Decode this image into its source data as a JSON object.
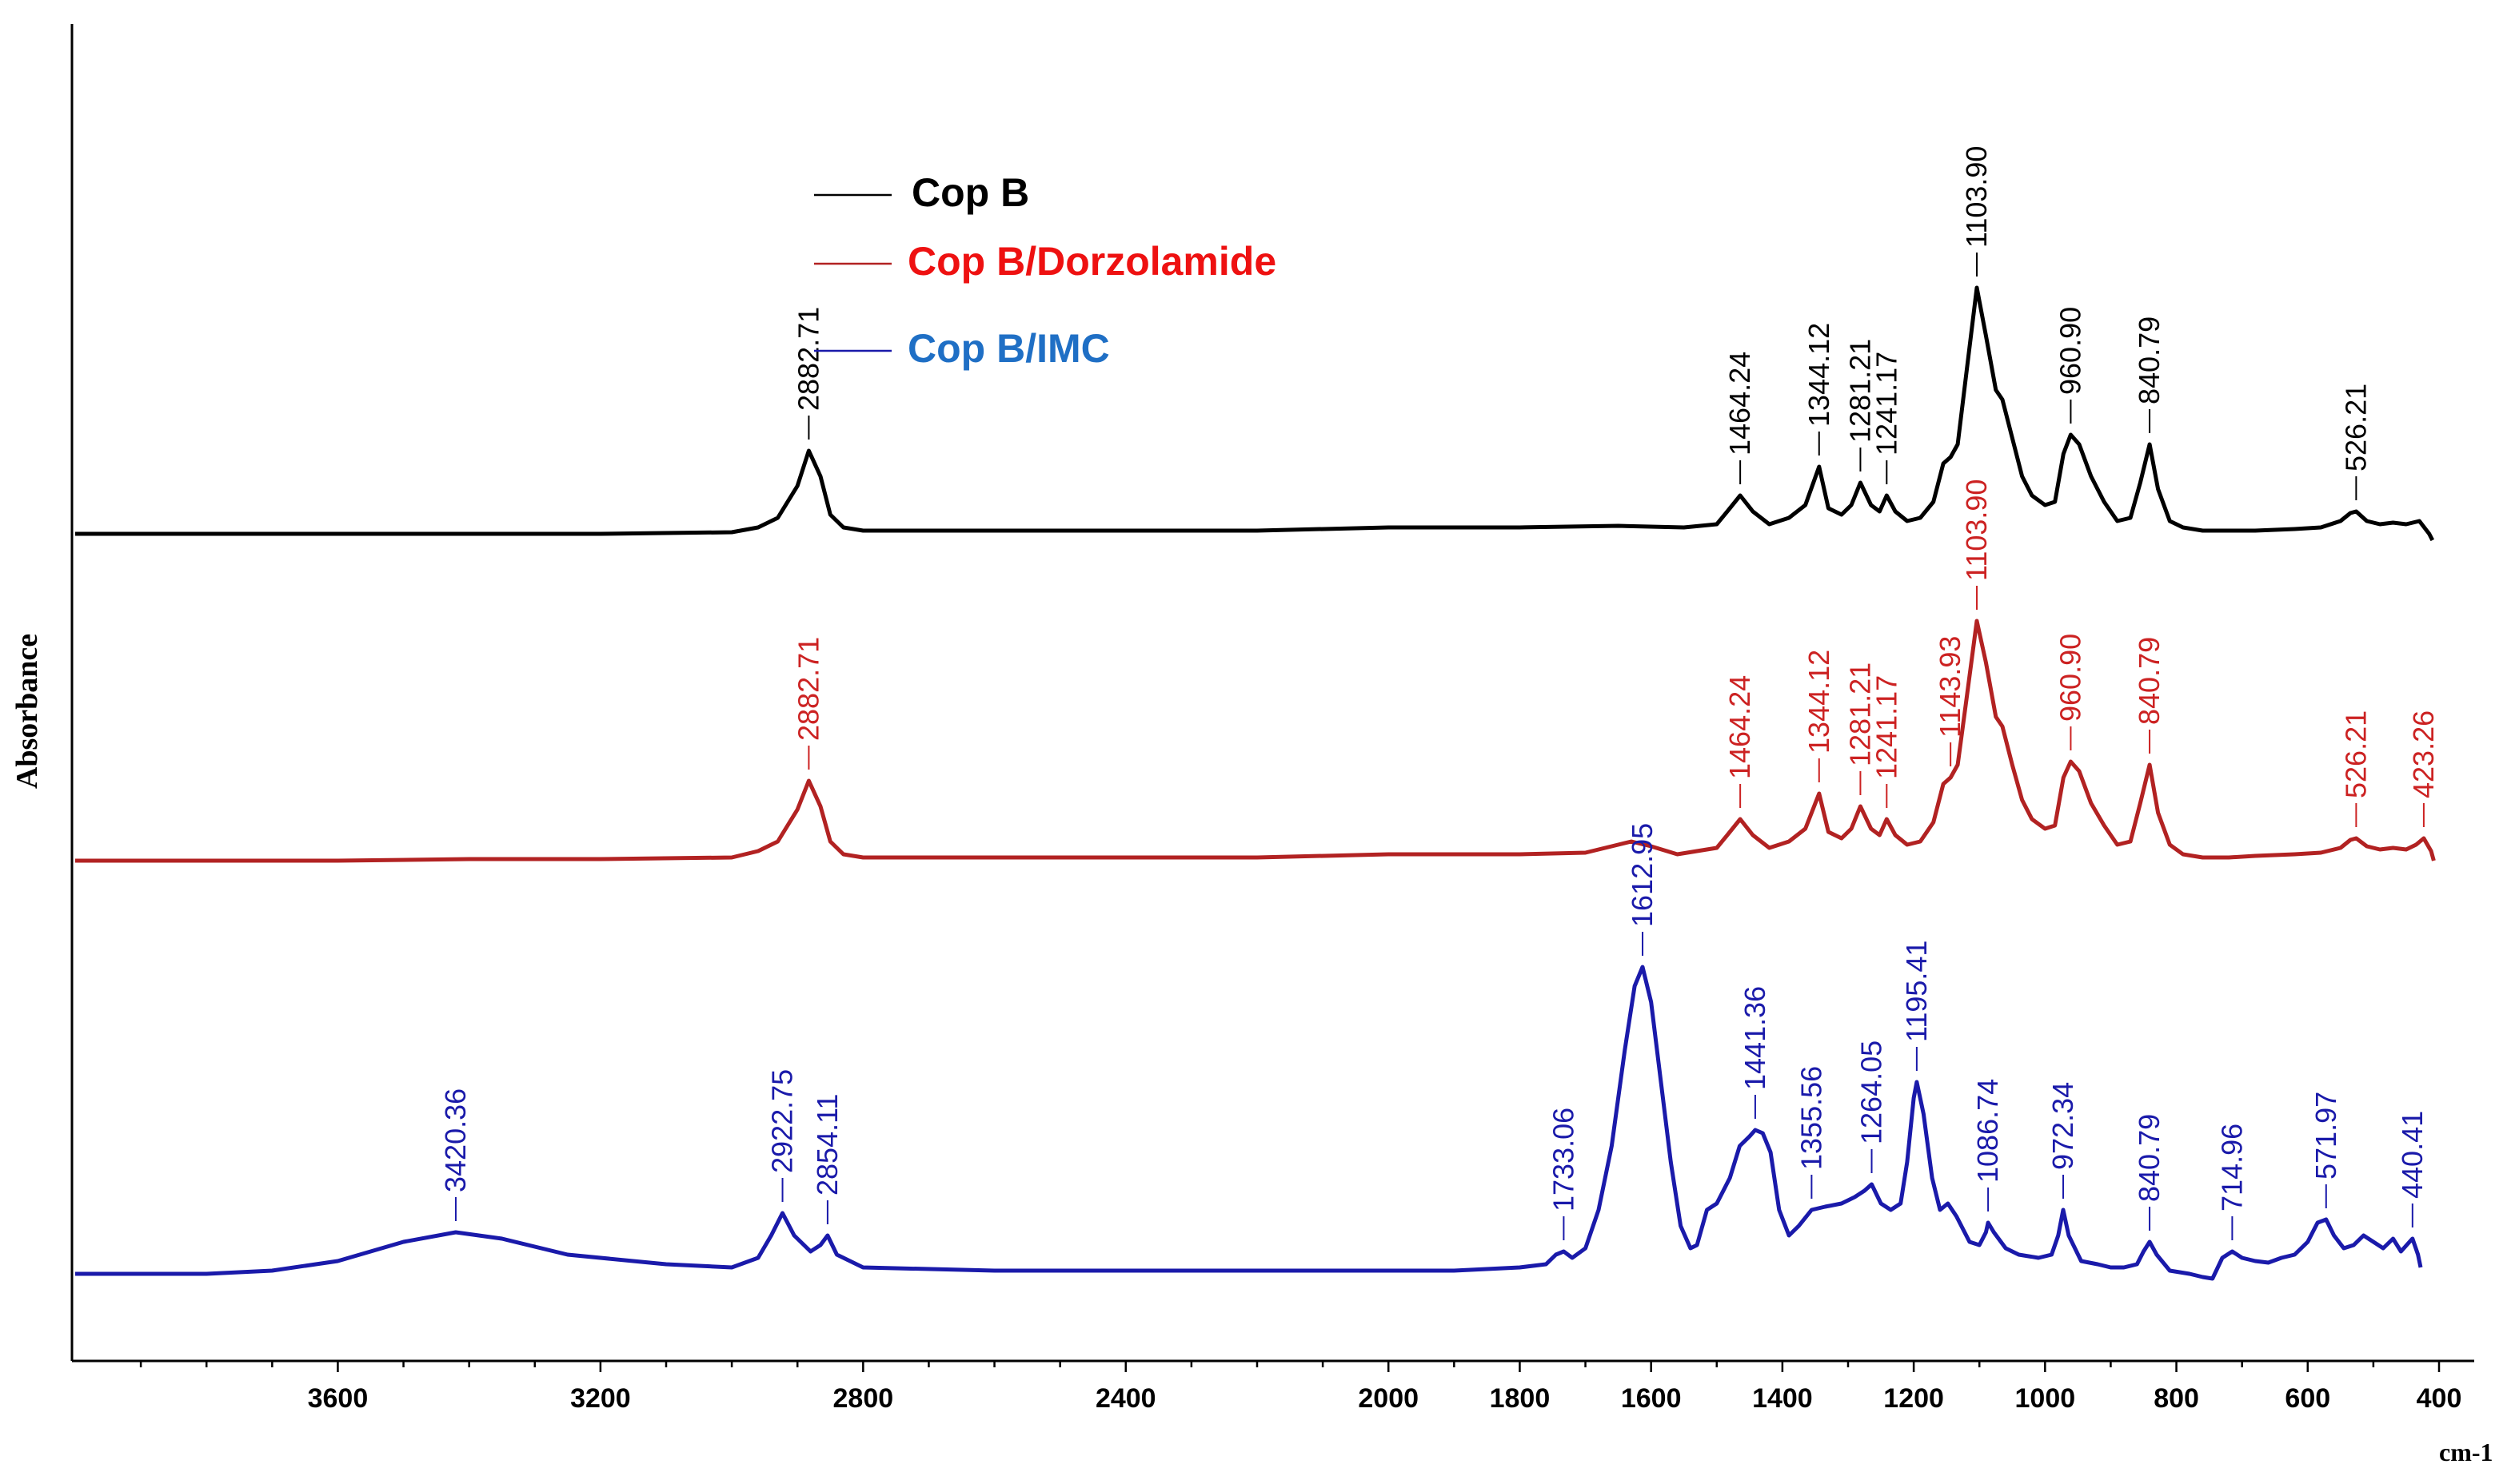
{
  "chart_data": {
    "type": "line",
    "title": "",
    "xlabel": "cm-1",
    "ylabel": "Absorbance",
    "xlim": [
      4000,
      400
    ],
    "x_reversed": true,
    "y_ticks_shown": false,
    "grid": false,
    "legend_position": "top-left",
    "x_ticks": [
      3600,
      3200,
      2800,
      2400,
      2000,
      1800,
      1600,
      1400,
      1200,
      1000,
      800,
      600,
      400
    ],
    "series": [
      {
        "name": "Cop B",
        "color": "#000000",
        "label_color": "#000000",
        "legend_color": "#000000",
        "points": [
          [
            4000,
            0.0
          ],
          [
            3800,
            0.0
          ],
          [
            3600,
            0.0
          ],
          [
            3400,
            0.0
          ],
          [
            3200,
            0.0
          ],
          [
            3000,
            0.005
          ],
          [
            2960,
            0.02
          ],
          [
            2930,
            0.05
          ],
          [
            2900,
            0.15
          ],
          [
            2882.71,
            0.26
          ],
          [
            2865,
            0.18
          ],
          [
            2850,
            0.06
          ],
          [
            2830,
            0.02
          ],
          [
            2800,
            0.01
          ],
          [
            2600,
            0.01
          ],
          [
            2400,
            0.01
          ],
          [
            2200,
            0.01
          ],
          [
            2000,
            0.02
          ],
          [
            1800,
            0.02
          ],
          [
            1650,
            0.025
          ],
          [
            1550,
            0.02
          ],
          [
            1500,
            0.03
          ],
          [
            1480,
            0.08
          ],
          [
            1464.24,
            0.12
          ],
          [
            1445,
            0.07
          ],
          [
            1420,
            0.03
          ],
          [
            1390,
            0.05
          ],
          [
            1365,
            0.09
          ],
          [
            1344.12,
            0.21
          ],
          [
            1330,
            0.08
          ],
          [
            1310,
            0.06
          ],
          [
            1295,
            0.09
          ],
          [
            1281.21,
            0.16
          ],
          [
            1265,
            0.09
          ],
          [
            1252,
            0.07
          ],
          [
            1241.17,
            0.12
          ],
          [
            1228,
            0.07
          ],
          [
            1210,
            0.04
          ],
          [
            1190,
            0.05
          ],
          [
            1170,
            0.1
          ],
          [
            1155,
            0.22
          ],
          [
            1143.93,
            0.24
          ],
          [
            1133,
            0.28
          ],
          [
            1120,
            0.5
          ],
          [
            1103.9,
            0.77
          ],
          [
            1090,
            0.62
          ],
          [
            1075,
            0.45
          ],
          [
            1065,
            0.42
          ],
          [
            1050,
            0.3
          ],
          [
            1035,
            0.18
          ],
          [
            1020,
            0.12
          ],
          [
            1000,
            0.09
          ],
          [
            985,
            0.1
          ],
          [
            972,
            0.25
          ],
          [
            960.9,
            0.31
          ],
          [
            948,
            0.28
          ],
          [
            930,
            0.18
          ],
          [
            910,
            0.1
          ],
          [
            890,
            0.04
          ],
          [
            870,
            0.05
          ],
          [
            855,
            0.16
          ],
          [
            840.79,
            0.28
          ],
          [
            828,
            0.14
          ],
          [
            810,
            0.04
          ],
          [
            790,
            0.02
          ],
          [
            760,
            0.01
          ],
          [
            720,
            0.01
          ],
          [
            680,
            0.01
          ],
          [
            620,
            0.015
          ],
          [
            580,
            0.02
          ],
          [
            550,
            0.04
          ],
          [
            535,
            0.065
          ],
          [
            526.21,
            0.07
          ],
          [
            510,
            0.04
          ],
          [
            490,
            0.03
          ],
          [
            470,
            0.035
          ],
          [
            450,
            0.03
          ],
          [
            430,
            0.04
          ],
          [
            415,
            0.0
          ],
          [
            410,
            -0.02
          ]
        ]
      },
      {
        "name": "Cop B/Dorzolamide",
        "color": "#b22222",
        "label_color": "#cc2222",
        "legend_color": "#ee1111",
        "points": [
          [
            4000,
            0.0
          ],
          [
            3800,
            0.0
          ],
          [
            3600,
            0.0
          ],
          [
            3400,
            0.005
          ],
          [
            3200,
            0.005
          ],
          [
            3000,
            0.01
          ],
          [
            2960,
            0.03
          ],
          [
            2930,
            0.06
          ],
          [
            2900,
            0.16
          ],
          [
            2882.71,
            0.25
          ],
          [
            2865,
            0.17
          ],
          [
            2850,
            0.06
          ],
          [
            2830,
            0.02
          ],
          [
            2800,
            0.01
          ],
          [
            2600,
            0.01
          ],
          [
            2400,
            0.01
          ],
          [
            2200,
            0.01
          ],
          [
            2000,
            0.02
          ],
          [
            1800,
            0.02
          ],
          [
            1700,
            0.025
          ],
          [
            1660,
            0.045
          ],
          [
            1630,
            0.06
          ],
          [
            1600,
            0.045
          ],
          [
            1560,
            0.02
          ],
          [
            1500,
            0.04
          ],
          [
            1480,
            0.09
          ],
          [
            1464.24,
            0.13
          ],
          [
            1445,
            0.08
          ],
          [
            1420,
            0.04
          ],
          [
            1390,
            0.06
          ],
          [
            1365,
            0.1
          ],
          [
            1344.12,
            0.21
          ],
          [
            1330,
            0.09
          ],
          [
            1310,
            0.07
          ],
          [
            1295,
            0.1
          ],
          [
            1281.21,
            0.17
          ],
          [
            1265,
            0.1
          ],
          [
            1252,
            0.08
          ],
          [
            1241.17,
            0.13
          ],
          [
            1228,
            0.08
          ],
          [
            1210,
            0.05
          ],
          [
            1190,
            0.06
          ],
          [
            1170,
            0.12
          ],
          [
            1155,
            0.24
          ],
          [
            1143.93,
            0.26
          ],
          [
            1133,
            0.3
          ],
          [
            1120,
            0.5
          ],
          [
            1103.9,
            0.75
          ],
          [
            1090,
            0.62
          ],
          [
            1075,
            0.45
          ],
          [
            1065,
            0.42
          ],
          [
            1050,
            0.3
          ],
          [
            1035,
            0.19
          ],
          [
            1020,
            0.13
          ],
          [
            1000,
            0.1
          ],
          [
            985,
            0.11
          ],
          [
            972,
            0.26
          ],
          [
            960.9,
            0.31
          ],
          [
            948,
            0.28
          ],
          [
            930,
            0.18
          ],
          [
            910,
            0.11
          ],
          [
            890,
            0.05
          ],
          [
            870,
            0.06
          ],
          [
            855,
            0.18
          ],
          [
            840.79,
            0.3
          ],
          [
            828,
            0.15
          ],
          [
            810,
            0.05
          ],
          [
            790,
            0.02
          ],
          [
            760,
            0.01
          ],
          [
            720,
            0.01
          ],
          [
            680,
            0.015
          ],
          [
            620,
            0.02
          ],
          [
            580,
            0.025
          ],
          [
            550,
            0.04
          ],
          [
            535,
            0.065
          ],
          [
            526.21,
            0.07
          ],
          [
            510,
            0.045
          ],
          [
            490,
            0.035
          ],
          [
            470,
            0.04
          ],
          [
            450,
            0.035
          ],
          [
            435,
            0.05
          ],
          [
            423.26,
            0.07
          ],
          [
            412,
            0.03
          ],
          [
            408,
            0.0
          ]
        ]
      },
      {
        "name": "Cop B/IMC",
        "color": "#1a1aaa",
        "label_color": "#1a1aaa",
        "legend_color": "#1f6fc5",
        "points": [
          [
            4000,
            0.0
          ],
          [
            3800,
            0.0
          ],
          [
            3700,
            0.01
          ],
          [
            3600,
            0.04
          ],
          [
            3500,
            0.1
          ],
          [
            3420.36,
            0.13
          ],
          [
            3350,
            0.11
          ],
          [
            3250,
            0.06
          ],
          [
            3100,
            0.03
          ],
          [
            3000,
            0.02
          ],
          [
            2960,
            0.05
          ],
          [
            2940,
            0.12
          ],
          [
            2922.75,
            0.19
          ],
          [
            2905,
            0.12
          ],
          [
            2880,
            0.07
          ],
          [
            2865,
            0.09
          ],
          [
            2854.11,
            0.12
          ],
          [
            2840,
            0.06
          ],
          [
            2800,
            0.02
          ],
          [
            2600,
            0.01
          ],
          [
            2400,
            0.01
          ],
          [
            2200,
            0.01
          ],
          [
            2000,
            0.01
          ],
          [
            1900,
            0.01
          ],
          [
            1800,
            0.02
          ],
          [
            1760,
            0.03
          ],
          [
            1745,
            0.06
          ],
          [
            1733.06,
            0.07
          ],
          [
            1720,
            0.05
          ],
          [
            1700,
            0.08
          ],
          [
            1680,
            0.2
          ],
          [
            1660,
            0.4
          ],
          [
            1640,
            0.7
          ],
          [
            1625,
            0.9
          ],
          [
            1612.95,
            0.96
          ],
          [
            1600,
            0.85
          ],
          [
            1585,
            0.6
          ],
          [
            1570,
            0.35
          ],
          [
            1555,
            0.15
          ],
          [
            1540,
            0.08
          ],
          [
            1530,
            0.09
          ],
          [
            1515,
            0.2
          ],
          [
            1500,
            0.22
          ],
          [
            1480,
            0.3
          ],
          [
            1465,
            0.4
          ],
          [
            1450,
            0.43
          ],
          [
            1441.36,
            0.45
          ],
          [
            1430,
            0.44
          ],
          [
            1418,
            0.38
          ],
          [
            1405,
            0.2
          ],
          [
            1390,
            0.12
          ],
          [
            1375,
            0.15
          ],
          [
            1355.56,
            0.2
          ],
          [
            1335,
            0.21
          ],
          [
            1310,
            0.22
          ],
          [
            1290,
            0.24
          ],
          [
            1275,
            0.26
          ],
          [
            1264.05,
            0.28
          ],
          [
            1250,
            0.22
          ],
          [
            1235,
            0.2
          ],
          [
            1220,
            0.22
          ],
          [
            1210,
            0.35
          ],
          [
            1200,
            0.55
          ],
          [
            1195.41,
            0.6
          ],
          [
            1185,
            0.5
          ],
          [
            1172,
            0.3
          ],
          [
            1160,
            0.2
          ],
          [
            1148,
            0.22
          ],
          [
            1135,
            0.18
          ],
          [
            1115,
            0.1
          ],
          [
            1100,
            0.09
          ],
          [
            1090,
            0.13
          ],
          [
            1086.74,
            0.16
          ],
          [
            1078,
            0.13
          ],
          [
            1060,
            0.08
          ],
          [
            1040,
            0.06
          ],
          [
            1010,
            0.05
          ],
          [
            990,
            0.06
          ],
          [
            980,
            0.12
          ],
          [
            972.34,
            0.2
          ],
          [
            964,
            0.12
          ],
          [
            945,
            0.04
          ],
          [
            920,
            0.03
          ],
          [
            900,
            0.02
          ],
          [
            880,
            0.02
          ],
          [
            860,
            0.03
          ],
          [
            850,
            0.07
          ],
          [
            840.79,
            0.1
          ],
          [
            830,
            0.06
          ],
          [
            810,
            0.01
          ],
          [
            780,
            0.0
          ],
          [
            760,
            -0.01
          ],
          [
            745,
            -0.015
          ],
          [
            730,
            0.05
          ],
          [
            714.96,
            0.07
          ],
          [
            700,
            0.05
          ],
          [
            680,
            0.04
          ],
          [
            660,
            0.035
          ],
          [
            640,
            0.05
          ],
          [
            620,
            0.06
          ],
          [
            600,
            0.1
          ],
          [
            585,
            0.16
          ],
          [
            571.97,
            0.17
          ],
          [
            560,
            0.12
          ],
          [
            545,
            0.08
          ],
          [
            530,
            0.09
          ],
          [
            515,
            0.12
          ],
          [
            500,
            0.1
          ],
          [
            485,
            0.08
          ],
          [
            470,
            0.11
          ],
          [
            458,
            0.07
          ],
          [
            445,
            0.1
          ],
          [
            440.41,
            0.11
          ],
          [
            432,
            0.06
          ],
          [
            428,
            0.02
          ]
        ]
      }
    ],
    "peak_labels": {
      "Cop B": [
        "2882.71",
        "1464.24",
        "1344.12",
        "1281.21",
        "1241.17",
        "1103.90",
        "960.90",
        "840.79",
        "526.21"
      ],
      "Cop B/Dorzolamide": [
        "2882.71",
        "1464.24",
        "1344.12",
        "1281.21",
        "1241.17",
        "1143.93",
        "1103.90",
        "960.90",
        "840.79",
        "526.21",
        "423.26"
      ],
      "Cop B/IMC": [
        "3420.36",
        "2922.75",
        "2854.11",
        "1733.06",
        "1612.95",
        "1441.36",
        "1355.56",
        "1264.05",
        "1195.41",
        "1086.74",
        "972.34",
        "840.79",
        "714.96",
        "571.97",
        "440.41"
      ]
    }
  }
}
